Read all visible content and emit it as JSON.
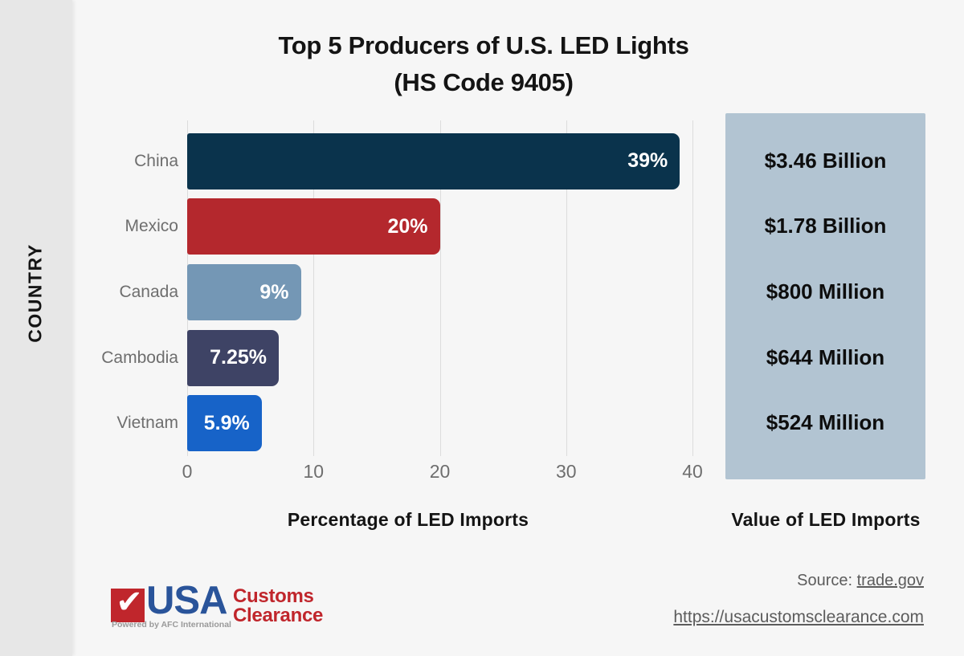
{
  "page": {
    "background": "#f6f6f6",
    "sidebar_color": "#e7e7e7"
  },
  "chart_data": {
    "type": "bar",
    "orientation": "horizontal",
    "title": "Top 5 Producers of U.S. LED Lights",
    "subtitle": "(HS Code 9405)",
    "categories": [
      "China",
      "Mexico",
      "Canada",
      "Cambodia",
      "Vietnam"
    ],
    "values": [
      39,
      20,
      9,
      7.25,
      5.9
    ],
    "value_labels": [
      "39%",
      "20%",
      "9%",
      "7.25%",
      "5.9%"
    ],
    "bar_colors": [
      "#0a334c",
      "#b4282d",
      "#7497b5",
      "#3e4365",
      "#1763c8"
    ],
    "xlabel": "Percentage of LED Imports",
    "ylabel": "COUNTRY",
    "xlim": [
      0,
      40
    ],
    "xticks": [
      0,
      10,
      20,
      30,
      40
    ],
    "grid": true,
    "grid_color": "#dcdcdc",
    "secondary_column": {
      "label": "Value of LED Imports",
      "values": [
        "$3.46 Billion",
        "$1.78 Billion",
        "$800 Million",
        "$644 Million",
        "$524 Million"
      ],
      "panel_color": "#b2c4d2"
    }
  },
  "footer": {
    "logo": {
      "check_glyph": "✔",
      "usa": "USA",
      "tagline": "Powered by AFC International",
      "word1": "Customs",
      "word2": "Clearance",
      "red": "#c0262c",
      "blue": "#2a549a"
    },
    "source_label": "Source:",
    "source_link": "trade.gov",
    "site_url": "https://usacustomsclearance.com"
  }
}
